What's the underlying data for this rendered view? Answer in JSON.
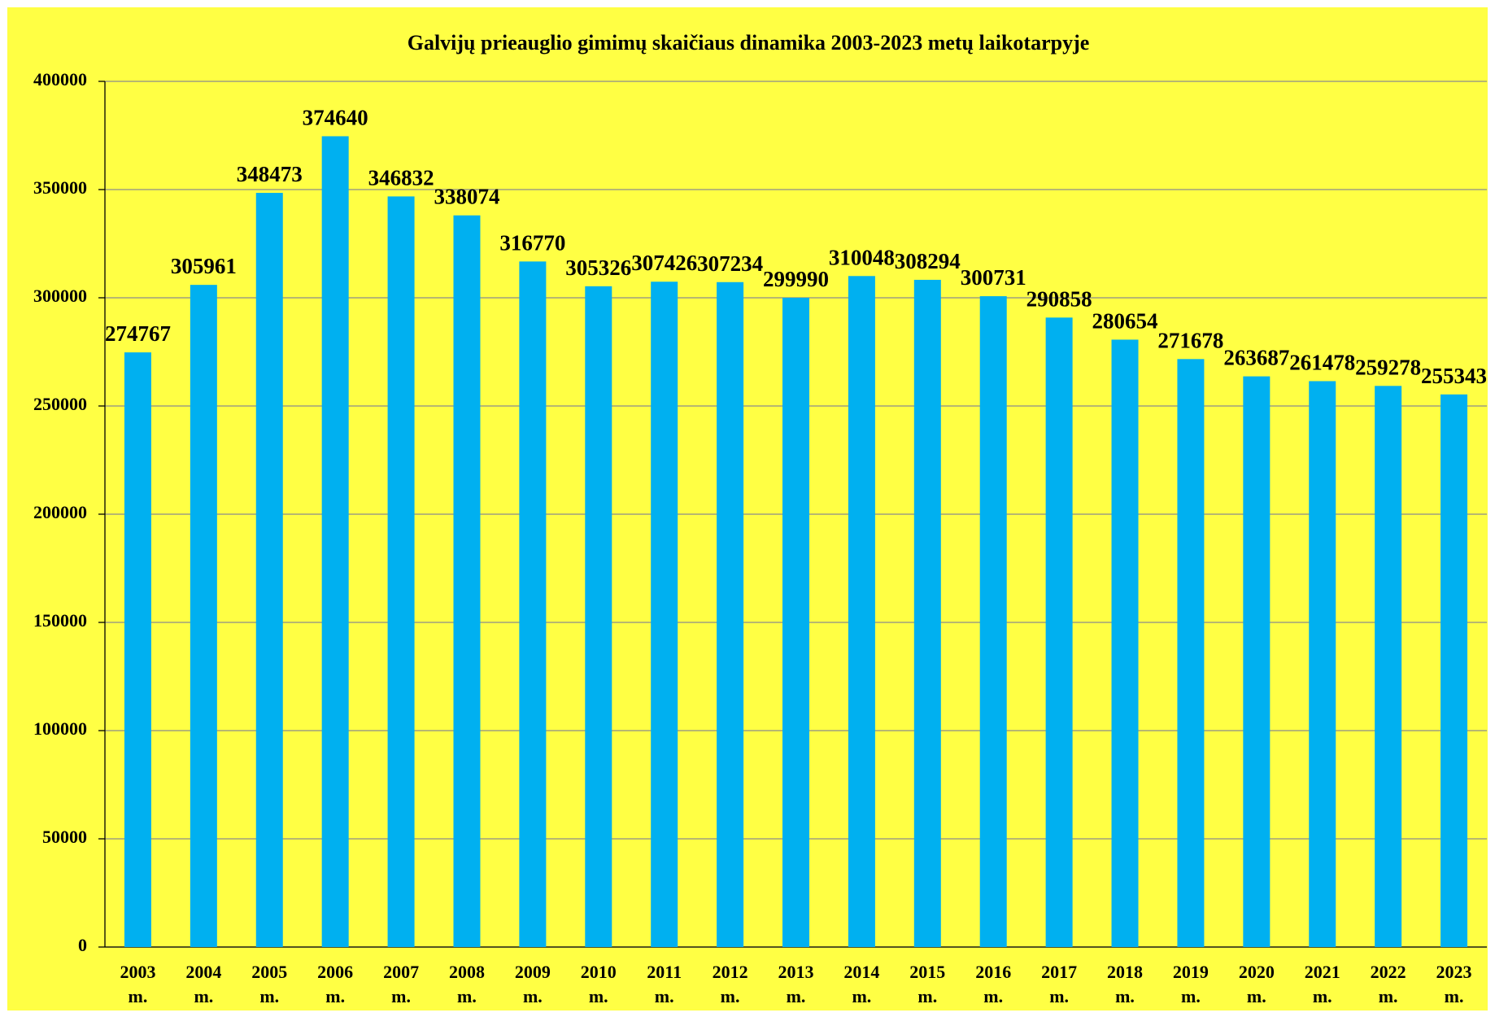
{
  "chart_data": {
    "type": "bar",
    "title": "Galvijų prieauglio gimimų skaičiaus dinamika 2003-2023 metų laikotarpyje",
    "categories": [
      "2003 m.",
      "2004 m.",
      "2005 m.",
      "2006 m.",
      "2007 m.",
      "2008 m.",
      "2009 m.",
      "2010 m.",
      "2011 m.",
      "2012 m.",
      "2013 m.",
      "2014 m.",
      "2015 m.",
      "2016 m.",
      "2017 m.",
      "2018 m.",
      "2019 m.",
      "2020 m.",
      "2021 m.",
      "2022 m.",
      "2023 m."
    ],
    "values": [
      274767,
      305961,
      348473,
      374640,
      346832,
      338074,
      316770,
      305326,
      307426,
      307234,
      299990,
      310048,
      308294,
      300731,
      290858,
      280654,
      271678,
      263687,
      261478,
      259278,
      255343
    ],
    "color": "#00b0f0",
    "ylim": [
      0,
      400000
    ],
    "yticks": [
      0,
      50000,
      100000,
      150000,
      200000,
      250000,
      300000,
      350000,
      400000
    ],
    "grid": true
  }
}
